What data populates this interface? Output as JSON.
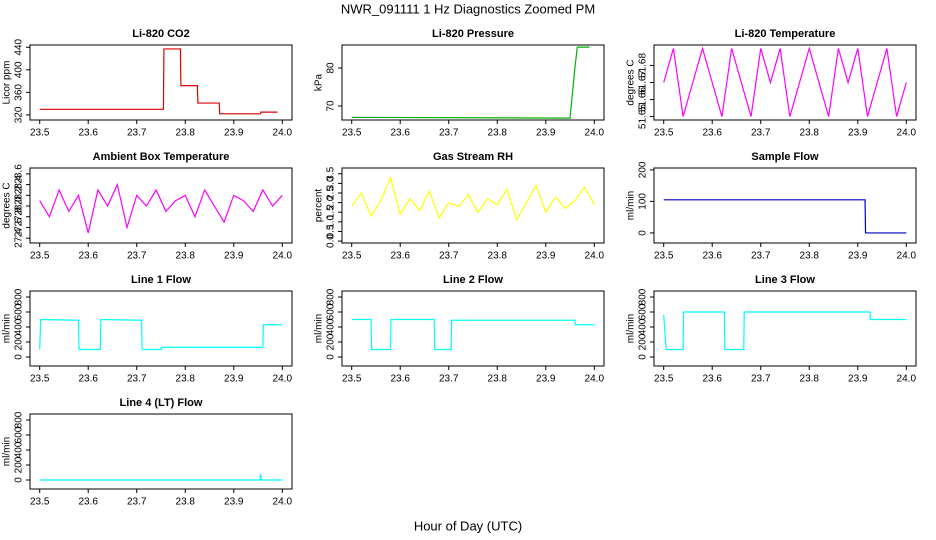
{
  "title": "NWR_091111  1 Hz Diagnostics Zoomed PM",
  "x_label": "Hour of Day (UTC)",
  "chart_data": [
    {
      "type": "line",
      "title": "Li-820 CO2",
      "ylabel": "Licor ppm",
      "color": "#e00000",
      "xlim": [
        23.48,
        24.02
      ],
      "xticks": [
        23.5,
        23.6,
        23.7,
        23.8,
        23.9,
        {
          "value": 24,
          "label": "24.0"
        }
      ],
      "ylim": [
        311,
        444
      ],
      "yticks": [
        320,
        360,
        400,
        440
      ],
      "x": [
        23.5,
        23.755,
        23.756,
        23.79,
        23.791,
        23.825,
        23.826,
        23.87,
        23.871,
        23.955,
        23.956,
        23.99
      ],
      "values": [
        330,
        330,
        437,
        437,
        372,
        372,
        341,
        341,
        322,
        322,
        325,
        325
      ]
    },
    {
      "type": "line",
      "title": "Li-820 Pressure",
      "ylabel": "kPa",
      "color": "#00b000",
      "xlim": [
        23.48,
        24.02
      ],
      "xticks": [
        23.5,
        23.6,
        23.7,
        23.8,
        23.9,
        {
          "value": 24,
          "label": "24.0"
        }
      ],
      "ylim": [
        66.3,
        86.05
      ],
      "yticks": [
        70,
        80
      ],
      "x": [
        23.5,
        23.95,
        23.96,
        23.965,
        23.99
      ],
      "values": [
        67,
        66.8,
        80,
        85.5,
        85.5
      ]
    },
    {
      "type": "line",
      "title": "Li-820 Temperature",
      "ylabel": "degrees C",
      "color": "#ff00ff",
      "xlim": [
        23.48,
        24.02
      ],
      "xticks": [
        23.5,
        23.6,
        23.7,
        23.8,
        23.9,
        {
          "value": 24,
          "label": "24.0"
        }
      ],
      "ylim": [
        51.648,
        51.692
      ],
      "yticks": [
        51.65,
        51.66,
        51.67,
        51.68
      ],
      "x": [
        23.5,
        23.52,
        23.54,
        23.56,
        23.58,
        23.6,
        23.62,
        23.64,
        23.66,
        23.68,
        23.7,
        23.72,
        23.74,
        23.76,
        23.78,
        23.8,
        23.82,
        23.84,
        23.86,
        23.88,
        23.9,
        23.92,
        23.94,
        23.96,
        23.98,
        24.0
      ],
      "values": [
        51.67,
        51.69,
        51.65,
        51.67,
        51.69,
        51.67,
        51.65,
        51.69,
        51.67,
        51.65,
        51.69,
        51.67,
        51.69,
        51.65,
        51.67,
        51.69,
        51.67,
        51.65,
        51.69,
        51.67,
        51.69,
        51.65,
        51.67,
        51.69,
        51.65,
        51.67
      ]
    },
    {
      "type": "line",
      "title": "Ambient Box Temperature",
      "ylabel": "degrees C",
      "color": "#ff00ff",
      "xlim": [
        23.48,
        24.02
      ],
      "xticks": [
        23.5,
        23.6,
        23.7,
        23.8,
        23.9,
        {
          "value": 24,
          "label": "24.0"
        }
      ],
      "ylim": [
        27.31,
        28.71
      ],
      "yticks": [
        27.4,
        27.6,
        27.8,
        {
          "value": 28,
          "label": "28.0"
        },
        28.2,
        28.4,
        28.6
      ],
      "x": [
        23.5,
        23.52,
        23.54,
        23.56,
        23.58,
        23.6,
        23.62,
        23.64,
        23.66,
        23.68,
        23.7,
        23.72,
        23.74,
        23.76,
        23.78,
        23.8,
        23.82,
        23.84,
        23.86,
        23.88,
        23.9,
        23.92,
        23.94,
        23.96,
        23.98,
        24.0
      ],
      "values": [
        28.1,
        27.8,
        28.3,
        27.9,
        28.2,
        27.5,
        28.3,
        28.0,
        28.4,
        27.6,
        28.2,
        28.0,
        28.3,
        27.9,
        28.1,
        28.2,
        27.8,
        28.3,
        28.0,
        27.7,
        28.2,
        28.1,
        27.9,
        28.3,
        28.0,
        28.2
      ]
    },
    {
      "type": "line",
      "title": "Gas Stream RH",
      "ylabel": "percent",
      "color": "#ffff00",
      "xlim": [
        23.48,
        24.02
      ],
      "xticks": [
        23.5,
        23.6,
        23.7,
        23.8,
        23.9,
        {
          "value": 24,
          "label": "24.0"
        }
      ],
      "ylim": [
        -0.1,
        3.8
      ],
      "yticks": [
        {
          "value": 0,
          "label": "0.0"
        },
        0.5,
        {
          "value": 1,
          "label": "1.0"
        },
        1.5,
        {
          "value": 2,
          "label": "2.0"
        },
        2.5,
        {
          "value": 3,
          "label": "3.0"
        },
        3.5
      ],
      "x": [
        23.5,
        23.52,
        23.54,
        23.56,
        23.58,
        23.6,
        23.62,
        23.64,
        23.66,
        23.68,
        23.7,
        23.72,
        23.74,
        23.76,
        23.78,
        23.8,
        23.82,
        23.84,
        23.86,
        23.88,
        23.9,
        23.92,
        23.94,
        23.96,
        23.98,
        24.0
      ],
      "values": [
        1.8,
        2.5,
        1.3,
        2.1,
        3.3,
        1.4,
        2.2,
        1.6,
        2.6,
        1.2,
        2.0,
        1.8,
        2.4,
        1.5,
        2.2,
        1.9,
        2.7,
        1.1,
        2.0,
        2.9,
        1.5,
        2.3,
        1.7,
        2.1,
        2.8,
        1.9
      ]
    },
    {
      "type": "line",
      "title": "Sample Flow",
      "ylabel": "ml/min",
      "color": "#0000cc",
      "xlim": [
        23.48,
        24.02
      ],
      "xticks": [
        23.5,
        23.6,
        23.7,
        23.8,
        23.9,
        {
          "value": 24,
          "label": "24.0"
        }
      ],
      "ylim": [
        -32,
        206
      ],
      "yticks": [
        0,
        100,
        200
      ],
      "x": [
        23.5,
        23.915,
        23.916,
        24.0
      ],
      "values": [
        105,
        105,
        0,
        0
      ]
    },
    {
      "type": "line",
      "title": "Line 1 Flow",
      "ylabel": "ml/min",
      "color": "#00ffff",
      "xlim": [
        23.48,
        24.02
      ],
      "xticks": [
        23.5,
        23.6,
        23.7,
        23.8,
        23.9,
        {
          "value": 24,
          "label": "24.0"
        }
      ],
      "ylim": [
        -120,
        880
      ],
      "yticks": [
        0,
        200,
        400,
        600,
        800
      ],
      "x": [
        23.5,
        23.502,
        23.58,
        23.581,
        23.625,
        23.626,
        23.71,
        23.711,
        23.75,
        23.751,
        23.96,
        23.961,
        24.0
      ],
      "values": [
        100,
        500,
        490,
        100,
        100,
        500,
        490,
        100,
        100,
        130,
        130,
        430,
        430
      ]
    },
    {
      "type": "line",
      "title": "Line 2 Flow",
      "ylabel": "ml/min",
      "color": "#00ffff",
      "xlim": [
        23.48,
        24.02
      ],
      "xticks": [
        23.5,
        23.6,
        23.7,
        23.8,
        23.9,
        {
          "value": 24,
          "label": "24.0"
        }
      ],
      "ylim": [
        -120,
        880
      ],
      "yticks": [
        0,
        200,
        400,
        600,
        800
      ],
      "x": [
        23.5,
        23.54,
        23.541,
        23.58,
        23.581,
        23.67,
        23.671,
        23.705,
        23.706,
        23.96,
        23.961,
        24.0
      ],
      "values": [
        500,
        500,
        100,
        100,
        500,
        500,
        100,
        100,
        490,
        490,
        430,
        430
      ]
    },
    {
      "type": "line",
      "title": "Line 3 Flow",
      "ylabel": "ml/min",
      "color": "#00ffff",
      "xlim": [
        23.48,
        24.02
      ],
      "xticks": [
        23.5,
        23.6,
        23.7,
        23.8,
        23.9,
        {
          "value": 24,
          "label": "24.0"
        }
      ],
      "ylim": [
        -120,
        880
      ],
      "yticks": [
        0,
        200,
        400,
        600,
        800
      ],
      "x": [
        23.5,
        23.505,
        23.54,
        23.541,
        23.625,
        23.626,
        23.665,
        23.666,
        23.925,
        23.926,
        24.0
      ],
      "values": [
        560,
        100,
        100,
        600,
        600,
        100,
        100,
        600,
        600,
        500,
        500
      ]
    },
    {
      "type": "line",
      "title": "Line 4 (LT) Flow",
      "ylabel": "ml/min",
      "color": "#00ffff",
      "xlim": [
        23.48,
        24.02
      ],
      "xticks": [
        23.5,
        23.6,
        23.7,
        23.8,
        23.9,
        {
          "value": 24,
          "label": "24.0"
        }
      ],
      "ylim": [
        -120,
        880
      ],
      "yticks": [
        0,
        200,
        400,
        600,
        800
      ],
      "x": [
        23.5,
        23.954,
        23.955,
        23.957,
        24.0
      ],
      "values": [
        0,
        0,
        80,
        0,
        0
      ]
    }
  ]
}
